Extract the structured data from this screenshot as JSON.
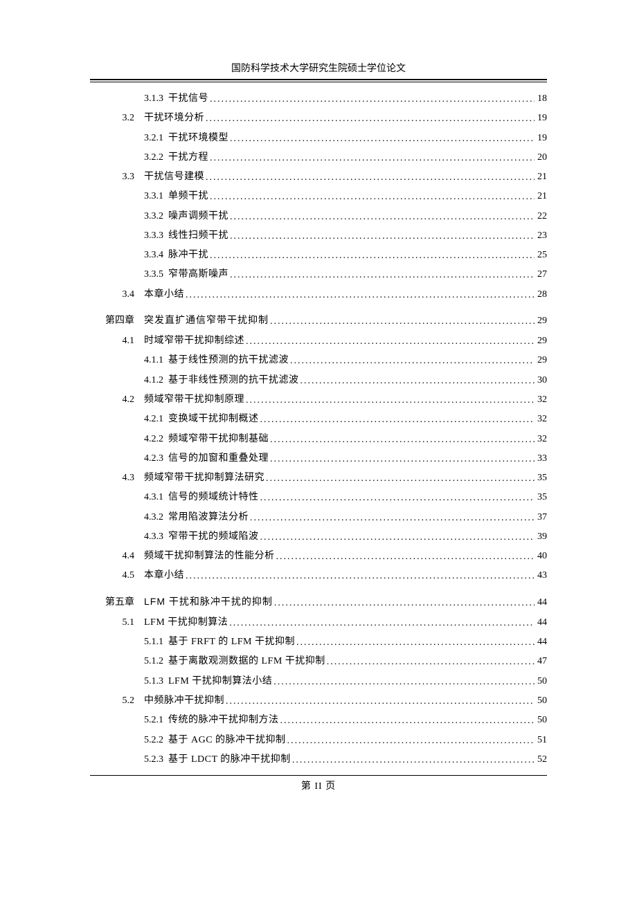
{
  "header": "国防科学技术大学研究生院硕士学位论文",
  "footer": "第 II 页",
  "entries": [
    {
      "level": "sub",
      "num": "3.1.3",
      "title": "干扰信号",
      "page": "18"
    },
    {
      "level": "section",
      "num": "3.2",
      "title": "干扰环境分析",
      "page": "19"
    },
    {
      "level": "sub",
      "num": "3.2.1",
      "title": "干扰环境模型",
      "page": "19"
    },
    {
      "level": "sub",
      "num": "3.2.2",
      "title": "干扰方程",
      "page": "20"
    },
    {
      "level": "section",
      "num": "3.3",
      "title": "干扰信号建模",
      "page": "21"
    },
    {
      "level": "sub",
      "num": "3.3.1",
      "title": "单频干扰",
      "page": "21"
    },
    {
      "level": "sub",
      "num": "3.3.2",
      "title": "噪声调频干扰",
      "page": "22"
    },
    {
      "level": "sub",
      "num": "3.3.3",
      "title": "线性扫频干扰",
      "page": "23"
    },
    {
      "level": "sub",
      "num": "3.3.4",
      "title": "脉冲干扰",
      "page": "25"
    },
    {
      "level": "sub",
      "num": "3.3.5",
      "title": "窄带高斯噪声",
      "page": "27"
    },
    {
      "level": "section",
      "num": "3.4",
      "title": "本章小结",
      "page": "28"
    },
    {
      "level": "chapter",
      "num": "第四章",
      "title": "突发直扩通信窄带干扰抑制",
      "page": "29"
    },
    {
      "level": "section",
      "num": "4.1",
      "title": "时域窄带干扰抑制综述",
      "page": "29"
    },
    {
      "level": "sub",
      "num": "4.1.1",
      "title": "基于线性预测的抗干扰滤波",
      "page": "29"
    },
    {
      "level": "sub",
      "num": "4.1.2",
      "title": "基于非线性预测的抗干扰滤波",
      "page": "30"
    },
    {
      "level": "section",
      "num": "4.2",
      "title": "频域窄带干扰抑制原理",
      "page": "32"
    },
    {
      "level": "sub",
      "num": "4.2.1",
      "title": "变换域干扰抑制概述",
      "page": "32"
    },
    {
      "level": "sub",
      "num": "4.2.2",
      "title": "频域窄带干扰抑制基础",
      "page": "32"
    },
    {
      "level": "sub",
      "num": "4.2.3",
      "title": "信号的加窗和重叠处理",
      "page": "33"
    },
    {
      "level": "section",
      "num": "4.3",
      "title": "频域窄带干扰抑制算法研究",
      "page": "35"
    },
    {
      "level": "sub",
      "num": "4.3.1",
      "title": "信号的频域统计特性",
      "page": "35"
    },
    {
      "level": "sub",
      "num": "4.3.2",
      "title": "常用陷波算法分析",
      "page": "37"
    },
    {
      "level": "sub",
      "num": "4.3.3",
      "title": "窄带干扰的频域陷波",
      "page": "39"
    },
    {
      "level": "section",
      "num": "4.4",
      "title": "频域干扰抑制算法的性能分析",
      "page": "40"
    },
    {
      "level": "section",
      "num": "4.5",
      "title": "本章小结",
      "page": "43"
    },
    {
      "level": "chapter",
      "num": "第五章",
      "title": "LFM 干扰和脉冲干扰的抑制",
      "page": "44"
    },
    {
      "level": "section",
      "num": "5.1",
      "title": "LFM 干扰抑制算法",
      "page": "44"
    },
    {
      "level": "sub",
      "num": "5.1.1",
      "title": "基于 FRFT 的 LFM 干扰抑制",
      "page": "44"
    },
    {
      "level": "sub",
      "num": "5.1.2",
      "title": "基于离散观测数据的 LFM 干扰抑制",
      "page": "47"
    },
    {
      "level": "sub",
      "num": "5.1.3",
      "title": "LFM 干扰抑制算法小结",
      "page": "50"
    },
    {
      "level": "section",
      "num": "5.2",
      "title": "中频脉冲干扰抑制",
      "page": "50"
    },
    {
      "level": "sub",
      "num": "5.2.1",
      "title": "传统的脉冲干扰抑制方法",
      "page": "50"
    },
    {
      "level": "sub",
      "num": "5.2.2",
      "title": "基于 AGC 的脉冲干扰抑制",
      "page": "51"
    },
    {
      "level": "sub",
      "num": "5.2.3",
      "title": "基于 LDCT 的脉冲干扰抑制",
      "page": "52"
    }
  ]
}
